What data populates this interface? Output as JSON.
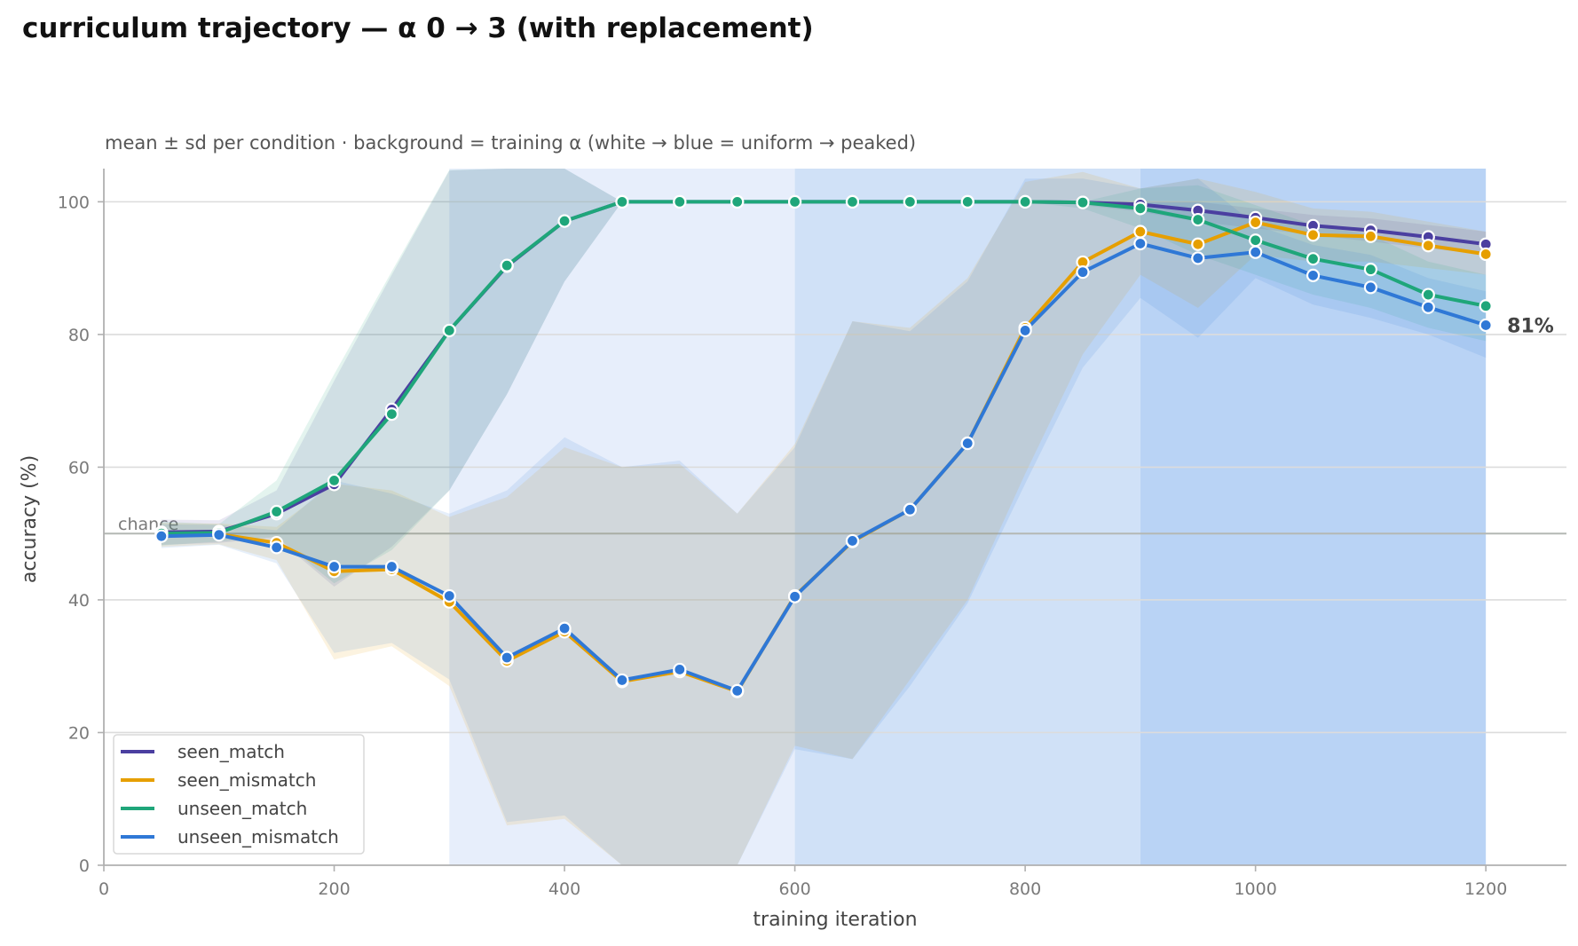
{
  "chart_data": {
    "type": "line",
    "title": "curriculum trajectory — α 0 → 3 (with replacement)",
    "subtitle": "mean ± sd per condition · background = training α (white → blue = uniform → peaked)",
    "xlabel": "training iteration",
    "ylabel": "accuracy (%)",
    "xlim": [
      0,
      1270
    ],
    "ylim": [
      0,
      105
    ],
    "x_ticks": [
      0,
      200,
      400,
      600,
      800,
      1000,
      1200
    ],
    "y_ticks": [
      0,
      20,
      40,
      60,
      80,
      100
    ],
    "grid": "horizontal",
    "legend_position": "lower-left",
    "reference_line": {
      "value": 50,
      "label": "chance",
      "color": "#b4b8b4"
    },
    "end_annotation": {
      "text": "81%",
      "series": "unseen_mismatch"
    },
    "background_bands": [
      {
        "x_start": 300,
        "x_end": 600,
        "color": "#e7eefb"
      },
      {
        "x_start": 600,
        "x_end": 900,
        "color": "#d0e1f7"
      },
      {
        "x_start": 900,
        "x_end": 1200,
        "color": "#b9d3f5"
      }
    ],
    "x": [
      50,
      100,
      150,
      200,
      250,
      300,
      350,
      400,
      450,
      500,
      550,
      600,
      650,
      700,
      750,
      800,
      850,
      900,
      950,
      1000,
      1050,
      1100,
      1150,
      1200
    ],
    "series": [
      {
        "name": "seen_match",
        "color": "#4b3fa0",
        "values": [
          50.2,
          50.3,
          53.0,
          57.4,
          68.7,
          80.6,
          90.3,
          97.1,
          100,
          100,
          100,
          100,
          100,
          100,
          100,
          100,
          99.9,
          99.6,
          98.7,
          97.6,
          96.4,
          95.7,
          94.7,
          93.6
        ],
        "sd_lower": [
          48.3,
          48.6,
          49.3,
          42.0,
          48.0,
          56.5,
          71.0,
          88.0,
          100,
          100,
          100,
          100,
          100,
          100,
          100,
          100,
          99.5,
          98.5,
          97.0,
          96.0,
          95.0,
          94.0,
          93.0,
          92.0
        ],
        "sd_upper": [
          52.1,
          52.0,
          56.5,
          73.0,
          89.0,
          104.7,
          105,
          105,
          100,
          100,
          100,
          100,
          100,
          100,
          100,
          100,
          100,
          100,
          100,
          99.0,
          98.0,
          97.5,
          96.5,
          95.5
        ]
      },
      {
        "name": "seen_mismatch",
        "color": "#e69f00",
        "values": [
          49.8,
          49.9,
          48.6,
          44.3,
          44.6,
          39.7,
          30.8,
          35.2,
          27.7,
          29.2,
          26.2,
          40.6,
          48.8,
          53.6,
          63.6,
          81.0,
          90.9,
          95.5,
          93.6,
          96.9,
          95.0,
          94.8,
          93.4,
          92.1
        ],
        "sd_lower": [
          48.0,
          48.4,
          46.0,
          31.0,
          33.0,
          27.0,
          6.0,
          7.0,
          0,
          0,
          0,
          18.0,
          16.0,
          28.0,
          40.0,
          59.0,
          77.0,
          89.0,
          84.0,
          92.0,
          91.0,
          91.0,
          90.0,
          89.0
        ],
        "sd_upper": [
          51.6,
          51.5,
          51.0,
          57.5,
          56.5,
          52.5,
          55.5,
          63.0,
          60.0,
          60.5,
          53.0,
          63.5,
          82.0,
          81.0,
          88.5,
          103.0,
          104.5,
          102.0,
          103.5,
          101.5,
          99.0,
          98.5,
          97.0,
          95.5
        ]
      },
      {
        "name": "unseen_match",
        "color": "#1fa67a",
        "values": [
          50.0,
          50.1,
          53.3,
          58.0,
          68.0,
          80.6,
          90.4,
          97.1,
          100,
          100,
          100,
          100,
          100,
          100,
          100,
          100,
          99.9,
          99.0,
          97.3,
          94.2,
          91.4,
          89.8,
          86.0,
          84.3
        ],
        "sd_lower": [
          48.2,
          48.8,
          49.5,
          42.5,
          47.5,
          56.5,
          71.0,
          88.0,
          100,
          100,
          100,
          100,
          100,
          100,
          100,
          100,
          99.0,
          96.0,
          92.0,
          89.0,
          86.0,
          84.0,
          81.0,
          79.0
        ],
        "sd_upper": [
          51.8,
          51.4,
          58.0,
          74.0,
          89.5,
          104.8,
          105,
          105,
          100,
          100,
          100,
          100,
          100,
          100,
          100,
          100,
          100,
          102.0,
          102.5,
          99.5,
          96.5,
          95.0,
          91.0,
          89.0
        ]
      },
      {
        "name": "unseen_mismatch",
        "color": "#2f78d6",
        "values": [
          49.6,
          49.8,
          47.9,
          45.0,
          45.0,
          40.6,
          31.3,
          35.7,
          27.9,
          29.5,
          26.3,
          40.5,
          48.9,
          53.6,
          63.6,
          80.6,
          89.4,
          93.7,
          91.5,
          92.4,
          88.9,
          87.1,
          84.1,
          81.4
        ],
        "sd_lower": [
          47.8,
          48.3,
          45.5,
          32.0,
          33.5,
          28.0,
          6.5,
          7.5,
          0,
          0,
          0,
          17.5,
          16.0,
          27.0,
          39.5,
          57.5,
          75.0,
          85.5,
          79.5,
          88.5,
          84.5,
          82.5,
          80.0,
          76.5
        ],
        "sd_upper": [
          51.4,
          51.3,
          50.5,
          58.0,
          56.0,
          53.0,
          56.5,
          64.5,
          60.0,
          61.0,
          53.0,
          63.0,
          82.0,
          80.5,
          88.0,
          103.5,
          103.5,
          102.0,
          103.5,
          96.5,
          93.5,
          92.0,
          88.5,
          86.5
        ]
      }
    ]
  }
}
